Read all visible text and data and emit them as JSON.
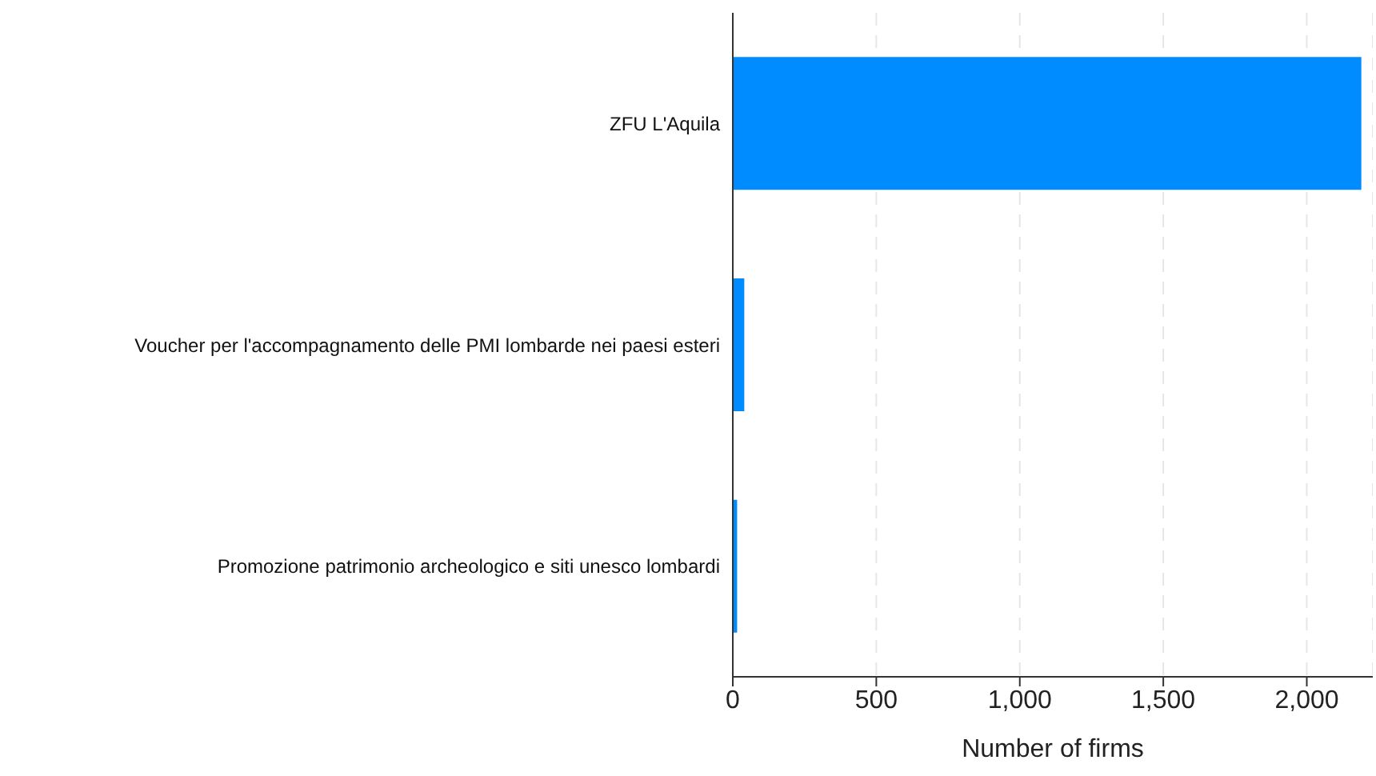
{
  "chart_data": {
    "type": "bar",
    "orientation": "horizontal",
    "categories": [
      "ZFU L'Aquila",
      "Voucher per l'accompagnamento delle PMI lombarde nei paesi esteri",
      "Promozione patrimonio archeologico e siti unesco lombardi"
    ],
    "values": [
      2190,
      40,
      15
    ],
    "color": "#008bff",
    "xlabel": "Number of firms",
    "xlim": [
      0,
      2230
    ],
    "xticks": [
      0,
      500,
      {
        "value": 1000,
        "label": "1,000"
      },
      {
        "value": 1500,
        "label": "1,500"
      },
      {
        "value": 2000,
        "label": "2,000"
      }
    ],
    "grid": "x",
    "legend": false
  }
}
